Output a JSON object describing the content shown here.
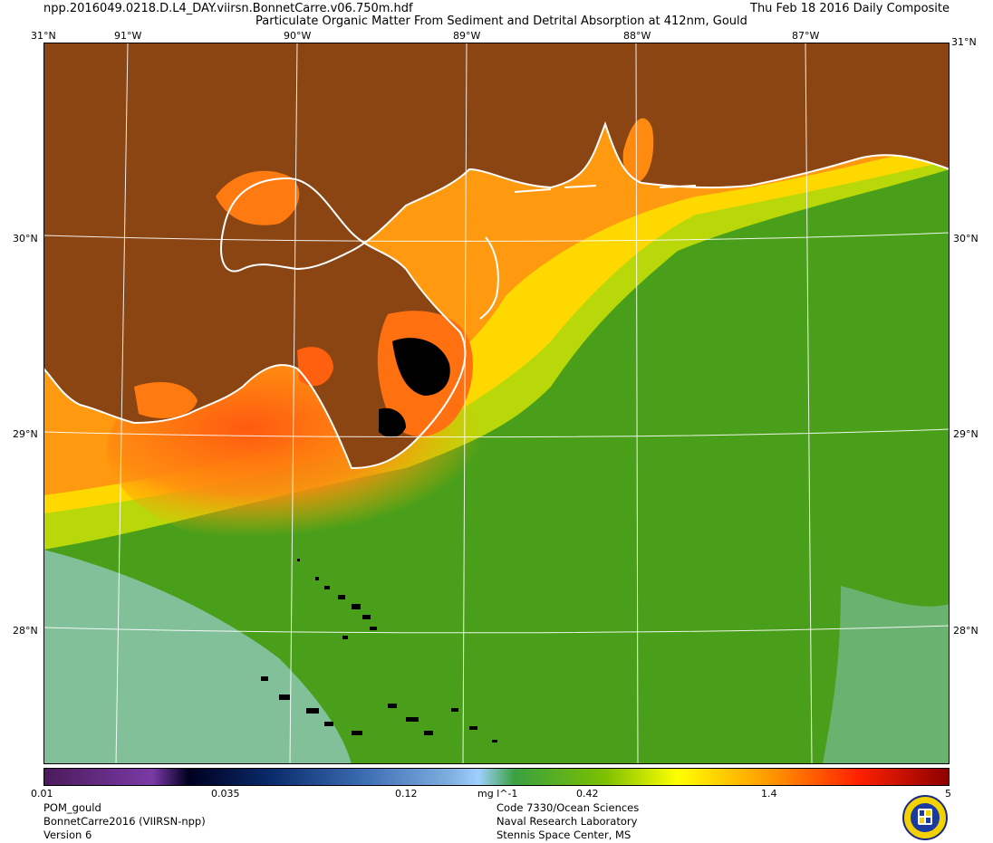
{
  "header": {
    "filename": "npp.2016049.0218.D.L4_DAY.viirsn.BonnetCarre.v06.750m.hdf",
    "date": "Thu Feb 18 2016 Daily Composite",
    "product": "Particulate Organic Matter From Sediment and Detrital Absorption at 412nm, Gould"
  },
  "map": {
    "lon_labels": [
      "91°W",
      "90°W",
      "89°W",
      "88°W",
      "87°W"
    ],
    "lat_labels": [
      "30°N",
      "29°N",
      "28°N"
    ],
    "corner_top_lat": "31°N",
    "land_color": "#8b4513",
    "coast_color": "#ffffff",
    "nodata_color": "#000000"
  },
  "colorbar": {
    "tick_labels": [
      "0.01",
      "0.035",
      "0.12",
      "0.42",
      "1.4",
      "5"
    ],
    "units": "mg l^-1",
    "scale": "log",
    "range": [
      0.01,
      5
    ]
  },
  "footer": {
    "left": [
      "POM_gould",
      "BonnetCarre2016 (VIIRSN-npp)",
      "Version 6"
    ],
    "center": [
      "Code 7330/Ocean Sciences",
      "Naval Research Laboratory",
      "Stennis Space Center, MS"
    ]
  }
}
